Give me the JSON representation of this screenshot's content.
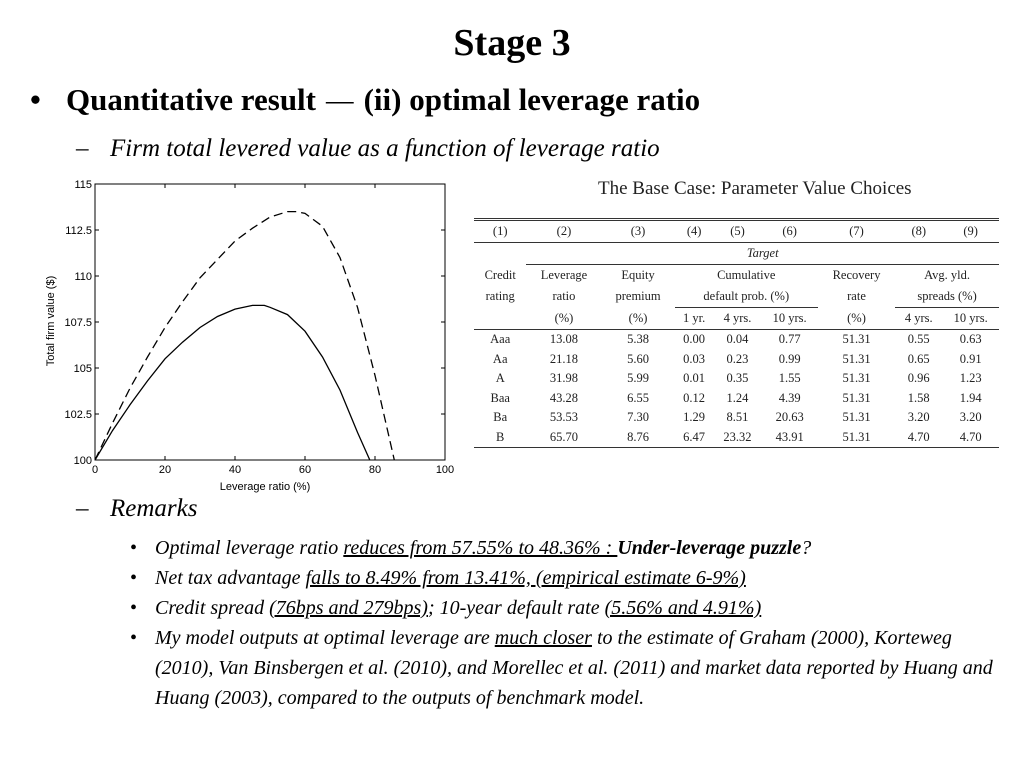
{
  "slide": {
    "title": "Stage 3",
    "bullet": {
      "marker": "•",
      "part1": "Quantitative result",
      "dash": "—",
      "part2": "(ii) optimal leverage ratio"
    },
    "sub1": {
      "marker": "–",
      "text": "Firm total levered value as a function of leverage ratio"
    },
    "sub2": {
      "marker": "–",
      "text": "Remarks"
    }
  },
  "chart_data": {
    "type": "line",
    "xlabel": "Leverage ratio (%)",
    "ylabel": "Total firm value ($)",
    "xlim": [
      0,
      100
    ],
    "ylim": [
      100,
      115
    ],
    "xticks": [
      0,
      20,
      40,
      60,
      80,
      100
    ],
    "yticks": [
      100,
      102.5,
      105,
      107.5,
      110,
      112.5,
      115
    ],
    "ytick_labels": [
      "100",
      "102.5",
      "105",
      "107.5",
      "110",
      "112.5",
      "115"
    ],
    "series": [
      {
        "style": "dashed",
        "x": [
          0,
          5,
          10,
          15,
          20,
          25,
          30,
          35,
          40,
          45,
          50,
          55,
          57.55,
          60,
          65,
          70,
          75,
          80,
          85.5
        ],
        "y": [
          100,
          102.0,
          103.9,
          105.6,
          107.2,
          108.6,
          109.9,
          110.9,
          111.9,
          112.6,
          113.2,
          113.5,
          113.5,
          113.4,
          112.7,
          111.0,
          108.3,
          104.6,
          100
        ]
      },
      {
        "style": "solid",
        "x": [
          0,
          5,
          10,
          15,
          20,
          25,
          30,
          35,
          40,
          45,
          48.36,
          50,
          55,
          60,
          65,
          70,
          75,
          78.5
        ],
        "y": [
          100,
          101.6,
          103.0,
          104.3,
          105.5,
          106.4,
          107.2,
          107.8,
          108.2,
          108.4,
          108.4,
          108.3,
          107.9,
          107.0,
          105.6,
          103.8,
          101.5,
          100
        ]
      }
    ]
  },
  "table": {
    "caption": "The Base Case: Parameter Value Choices",
    "col_numbers": [
      "(1)",
      "(2)",
      "(3)",
      "(4)",
      "(5)",
      "(6)",
      "(7)",
      "(8)",
      "(9)"
    ],
    "target_label": "Target",
    "head": {
      "credit1": "Credit",
      "credit2": "rating",
      "lev1": "Leverage",
      "lev2": "ratio",
      "lev3": "(%)",
      "eq1": "Equity",
      "eq2": "premium",
      "eq3": "(%)",
      "cum1": "Cumulative",
      "cum2": "default prob. (%)",
      "rec1": "Recovery",
      "rec2": "rate",
      "rec3": "(%)",
      "avg1": "Avg. yld.",
      "avg2": "spreads (%)",
      "y1": "1 yr.",
      "y4": "4 yrs.",
      "y10": "10 yrs.",
      "s4": "4 yrs.",
      "s10": "10 yrs."
    },
    "rows": [
      [
        "Aaa",
        "13.08",
        "5.38",
        "0.00",
        "0.04",
        "0.77",
        "51.31",
        "0.55",
        "0.63"
      ],
      [
        "Aa",
        "21.18",
        "5.60",
        "0.03",
        "0.23",
        "0.99",
        "51.31",
        "0.65",
        "0.91"
      ],
      [
        "A",
        "31.98",
        "5.99",
        "0.01",
        "0.35",
        "1.55",
        "51.31",
        "0.96",
        "1.23"
      ],
      [
        "Baa",
        "43.28",
        "6.55",
        "0.12",
        "1.24",
        "4.39",
        "51.31",
        "1.58",
        "1.94"
      ],
      [
        "Ba",
        "53.53",
        "7.30",
        "1.29",
        "8.51",
        "20.63",
        "51.31",
        "3.20",
        "3.20"
      ],
      [
        "B",
        "65.70",
        "8.76",
        "6.47",
        "23.32",
        "43.91",
        "51.31",
        "4.70",
        "4.70"
      ]
    ]
  },
  "remarks": {
    "marker": "•",
    "r1": {
      "a": "Optimal leverage ratio ",
      "b": "reduces from 57.55% to 48.36% : ",
      "c": "Under-leverage puzzle",
      "d": "?"
    },
    "r2": {
      "a": "Net tax advantage ",
      "b": "falls to 8.49% from 13.41%, (empirical estimate 6-9%)"
    },
    "r3": {
      "a": "Credit spread ",
      "b": "(76bps and 279bps)",
      "c": "; 10-year default rate ",
      "d": "(5.56% and 4.91%)"
    },
    "r4": {
      "a": "My model outputs at optimal leverage are ",
      "b": "much closer",
      "c": " to the estimate of Graham (2000), Korteweg (2010), Van Binsbergen et al. (2010), and Morellec et al. (2011) and market data reported by Huang and Huang (2003), compared to the outputs of benchmark model."
    }
  }
}
